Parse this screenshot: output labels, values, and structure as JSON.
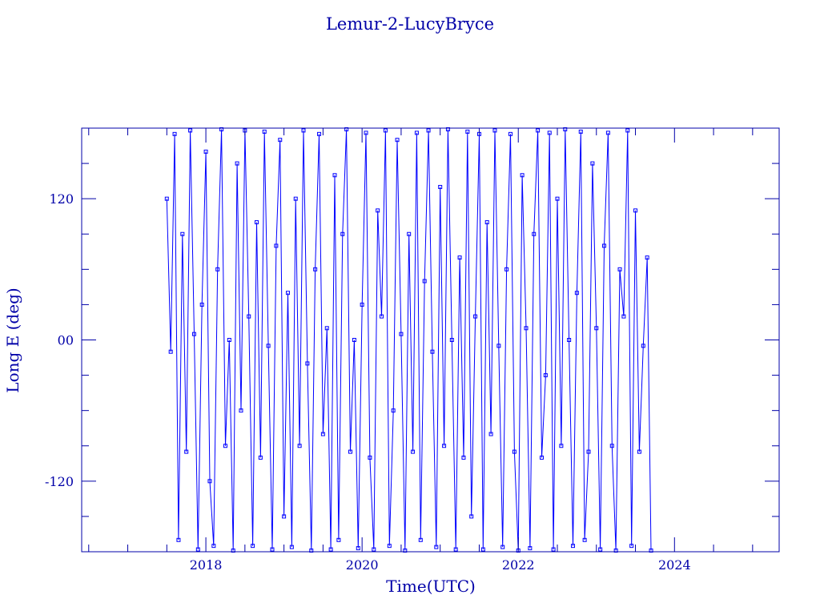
{
  "chart_data": {
    "type": "line",
    "title": "Lemur-2-LucyBryce",
    "xlabel": "Time(UTC)",
    "ylabel": "Long E (deg)",
    "xlim": [
      2016.41,
      2025.34
    ],
    "ylim": [
      -180,
      180
    ],
    "x_ticks": [
      2018,
      2020,
      2022,
      2024
    ],
    "x_tick_labels": [
      "2018",
      "2020",
      "2022",
      "2024"
    ],
    "y_ticks": [
      -120,
      0,
      120
    ],
    "y_tick_labels": [
      "-120",
      "00",
      "120"
    ],
    "grid": false,
    "legend": "none",
    "markers": "square",
    "colors": {
      "data": "#0000ff",
      "axes": "#0000a8"
    },
    "series": [
      {
        "points": [
          [
            2017.5,
            120
          ],
          [
            2017.55,
            -10
          ],
          [
            2017.6,
            175
          ],
          [
            2017.65,
            -170
          ],
          [
            2017.7,
            90
          ],
          [
            2017.75,
            -95
          ],
          [
            2017.8,
            178
          ],
          [
            2017.85,
            5
          ],
          [
            2017.9,
            -178
          ],
          [
            2017.95,
            30
          ],
          [
            2018.0,
            160
          ],
          [
            2018.05,
            -120
          ],
          [
            2018.1,
            -175
          ],
          [
            2018.15,
            60
          ],
          [
            2018.2,
            179
          ],
          [
            2018.25,
            -90
          ],
          [
            2018.3,
            0
          ],
          [
            2018.35,
            -179
          ],
          [
            2018.4,
            150
          ],
          [
            2018.45,
            -60
          ],
          [
            2018.5,
            178
          ],
          [
            2018.55,
            20
          ],
          [
            2018.6,
            -175
          ],
          [
            2018.65,
            100
          ],
          [
            2018.7,
            -100
          ],
          [
            2018.75,
            177
          ],
          [
            2018.8,
            -5
          ],
          [
            2018.85,
            -178
          ],
          [
            2018.9,
            80
          ],
          [
            2018.95,
            170
          ],
          [
            2019.0,
            -150
          ],
          [
            2019.05,
            40
          ],
          [
            2019.1,
            -176
          ],
          [
            2019.15,
            120
          ],
          [
            2019.2,
            -90
          ],
          [
            2019.25,
            178
          ],
          [
            2019.3,
            -20
          ],
          [
            2019.35,
            -179
          ],
          [
            2019.4,
            60
          ],
          [
            2019.45,
            175
          ],
          [
            2019.5,
            -80
          ],
          [
            2019.55,
            10
          ],
          [
            2019.6,
            -178
          ],
          [
            2019.65,
            140
          ],
          [
            2019.7,
            -170
          ],
          [
            2019.75,
            90
          ],
          [
            2019.8,
            179
          ],
          [
            2019.85,
            -95
          ],
          [
            2019.9,
            0
          ],
          [
            2019.95,
            -177
          ],
          [
            2020.0,
            30
          ],
          [
            2020.05,
            176
          ],
          [
            2020.1,
            -100
          ],
          [
            2020.15,
            -178
          ],
          [
            2020.2,
            110
          ],
          [
            2020.25,
            20
          ],
          [
            2020.3,
            178
          ],
          [
            2020.35,
            -175
          ],
          [
            2020.4,
            -60
          ],
          [
            2020.45,
            170
          ],
          [
            2020.5,
            5
          ],
          [
            2020.55,
            -179
          ],
          [
            2020.6,
            90
          ],
          [
            2020.65,
            -95
          ],
          [
            2020.7,
            176
          ],
          [
            2020.75,
            -170
          ],
          [
            2020.8,
            50
          ],
          [
            2020.85,
            178
          ],
          [
            2020.9,
            -10
          ],
          [
            2020.95,
            -176
          ],
          [
            2021.0,
            130
          ],
          [
            2021.05,
            -90
          ],
          [
            2021.1,
            179
          ],
          [
            2021.15,
            0
          ],
          [
            2021.2,
            -178
          ],
          [
            2021.25,
            70
          ],
          [
            2021.3,
            -100
          ],
          [
            2021.35,
            177
          ],
          [
            2021.4,
            -150
          ],
          [
            2021.45,
            20
          ],
          [
            2021.5,
            175
          ],
          [
            2021.55,
            -178
          ],
          [
            2021.6,
            100
          ],
          [
            2021.65,
            -80
          ],
          [
            2021.7,
            178
          ],
          [
            2021.75,
            -5
          ],
          [
            2021.8,
            -176
          ],
          [
            2021.85,
            60
          ],
          [
            2021.9,
            175
          ],
          [
            2021.95,
            -95
          ],
          [
            2022.0,
            -179
          ],
          [
            2022.05,
            140
          ],
          [
            2022.1,
            10
          ],
          [
            2022.15,
            -177
          ],
          [
            2022.2,
            90
          ],
          [
            2022.25,
            178
          ],
          [
            2022.3,
            -100
          ],
          [
            2022.35,
            -30
          ],
          [
            2022.4,
            176
          ],
          [
            2022.45,
            -178
          ],
          [
            2022.5,
            120
          ],
          [
            2022.55,
            -90
          ],
          [
            2022.6,
            179
          ],
          [
            2022.65,
            0
          ],
          [
            2022.7,
            -175
          ],
          [
            2022.75,
            40
          ],
          [
            2022.8,
            177
          ],
          [
            2022.85,
            -170
          ],
          [
            2022.9,
            -95
          ],
          [
            2022.95,
            150
          ],
          [
            2023.0,
            10
          ],
          [
            2023.05,
            -178
          ],
          [
            2023.1,
            80
          ],
          [
            2023.15,
            176
          ],
          [
            2023.2,
            -90
          ],
          [
            2023.25,
            -179
          ],
          [
            2023.3,
            60
          ],
          [
            2023.35,
            20
          ],
          [
            2023.4,
            178
          ],
          [
            2023.45,
            -175
          ],
          [
            2023.5,
            110
          ],
          [
            2023.55,
            -95
          ],
          [
            2023.6,
            -5
          ],
          [
            2023.65,
            70
          ],
          [
            2023.7,
            -179
          ]
        ]
      }
    ]
  }
}
